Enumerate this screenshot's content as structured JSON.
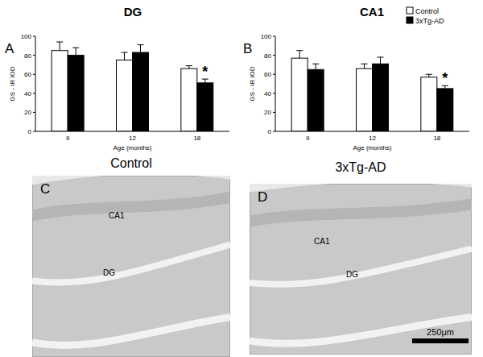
{
  "chart_data": [
    {
      "type": "bar",
      "panel": "A",
      "title": "DG",
      "categories": [
        "9",
        "12",
        "18"
      ],
      "series": [
        {
          "name": "Control",
          "color": "#ffffff",
          "values": [
            85,
            75,
            66
          ],
          "errors": [
            9,
            8,
            3
          ]
        },
        {
          "name": "3xTg-AD",
          "color": "#000000",
          "values": [
            80,
            83,
            51
          ],
          "errors": [
            8,
            8,
            4
          ]
        }
      ],
      "x_label": "Age (months)",
      "y_label": "GS - IR IOD",
      "ylim": [
        0,
        100
      ],
      "yticks": [
        0,
        20,
        40,
        60,
        80,
        100
      ],
      "annotations": [
        {
          "text": "*",
          "category": "18",
          "series": "3xTg-AD"
        }
      ]
    },
    {
      "type": "bar",
      "panel": "B",
      "title": "CA1",
      "categories": [
        "9",
        "12",
        "18"
      ],
      "series": [
        {
          "name": "Control",
          "color": "#ffffff",
          "values": [
            77,
            66,
            57
          ],
          "errors": [
            8,
            5,
            3
          ]
        },
        {
          "name": "3xTg-AD",
          "color": "#000000",
          "values": [
            65,
            71,
            45
          ],
          "errors": [
            6,
            7,
            3
          ]
        }
      ],
      "x_label": "Age (months)",
      "y_label": "GS - IR IOD",
      "ylim": [
        0,
        100
      ],
      "yticks": [
        0,
        20,
        40,
        60,
        80,
        100
      ],
      "legend": "top-right",
      "annotations": [
        {
          "text": "*",
          "category": "18",
          "series": "3xTg-AD"
        }
      ]
    }
  ],
  "images": [
    {
      "panel": "C",
      "title": "Control",
      "regions": [
        "CA1",
        "DG"
      ]
    },
    {
      "panel": "D",
      "title": "3xTg-AD",
      "regions": [
        "CA1",
        "DG"
      ],
      "scale_bar": "250μm"
    }
  ]
}
